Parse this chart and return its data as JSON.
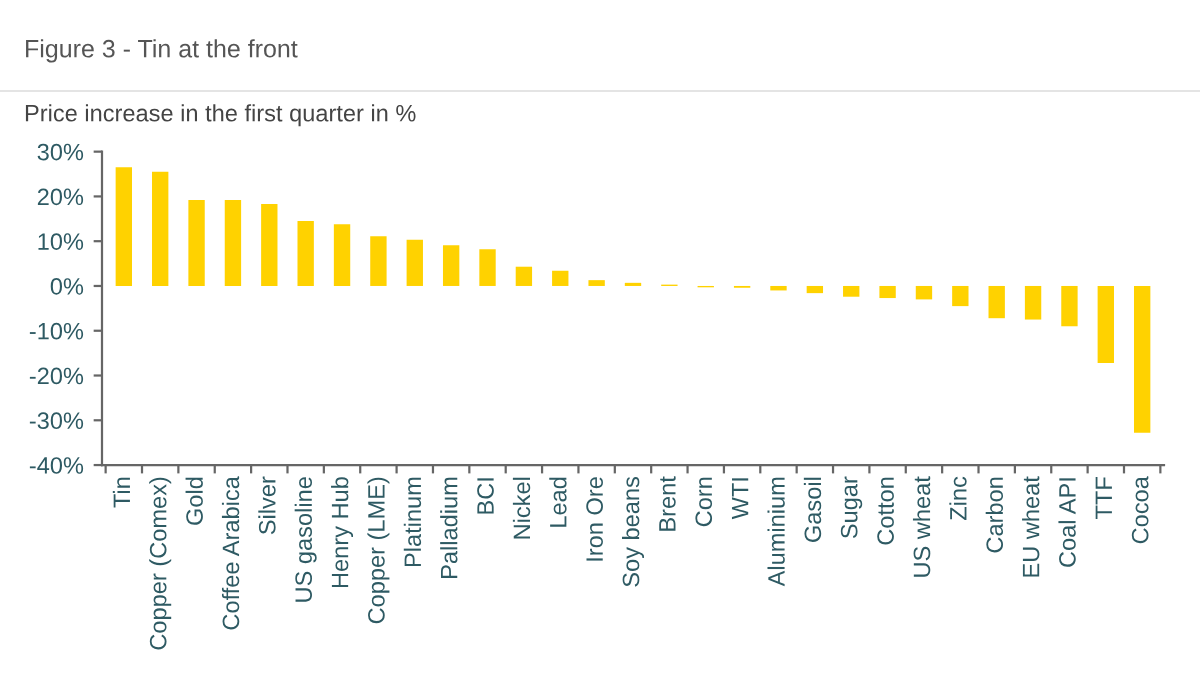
{
  "chart_data": {
    "type": "bar",
    "title": "Figure 3 - Tin at the front",
    "subtitle": "Price increase in the first quarter in %",
    "categories": [
      "Tin",
      "Copper (Comex)",
      "Gold",
      "Coffee Arabica",
      "Silver",
      "US gasoline",
      "Henry Hub",
      "Copper (LME)",
      "Platinum",
      "Palladium",
      "BCI",
      "Nickel",
      "Lead",
      "Iron Ore",
      "Soy beans",
      "Brent",
      "Corn",
      "WTI",
      "Aluminium",
      "Gasoil",
      "Sugar",
      "Cotton",
      "US wheat",
      "Zinc",
      "Carbon",
      "EU wheat",
      "Coal API",
      "TTF",
      "Cocoa"
    ],
    "values": [
      26.5,
      25.5,
      19.2,
      19.2,
      18.3,
      14.5,
      13.8,
      11.1,
      10.3,
      9.1,
      8.2,
      4.3,
      3.4,
      1.3,
      0.7,
      0.3,
      -0.3,
      -0.4,
      -1.0,
      -1.6,
      -2.4,
      -2.7,
      -3.0,
      -4.5,
      -7.2,
      -7.5,
      -9.0,
      -17.2,
      -32.8
    ],
    "color": "#ffd200",
    "ylim": [
      -40,
      30
    ],
    "yticks": [
      {
        "value": -40,
        "label": "-40%"
      },
      {
        "value": -30,
        "label": "-30%"
      },
      {
        "value": -20,
        "label": "-20%"
      },
      {
        "value": -10,
        "label": "-10%"
      },
      {
        "value": 0,
        "label": "0%"
      },
      {
        "value": 10,
        "label": "10%"
      },
      {
        "value": 20,
        "label": "20%"
      },
      {
        "value": 30,
        "label": "30%"
      }
    ],
    "grid": false,
    "legend": false
  }
}
